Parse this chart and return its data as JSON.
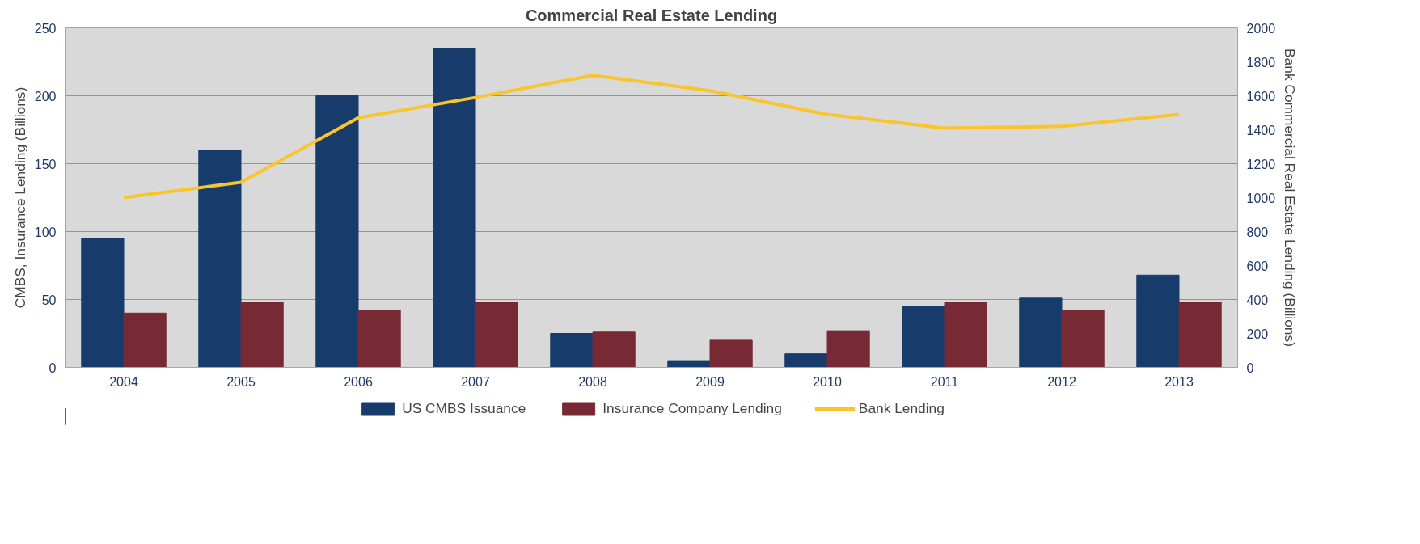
{
  "chart_data": {
    "type": "bar",
    "title": "Commercial Real Estate Lending",
    "ylabel": "CMBS, Insurance Lending (Billions)",
    "y2label": "Bank Commercial Real Estate Lending (Billions)",
    "categories": [
      "2004",
      "2005",
      "2006",
      "2007",
      "2008",
      "2009",
      "2010",
      "2011",
      "2012",
      "2013"
    ],
    "series": [
      {
        "name": "US CMBS Issuance",
        "color": "#173c6c",
        "values": [
          95,
          160,
          200,
          235,
          25,
          5,
          10,
          45,
          51,
          68
        ]
      },
      {
        "name": "Insurance Company Lending",
        "color": "#772a33",
        "values": [
          40,
          48,
          42,
          48,
          26,
          20,
          27,
          48,
          42,
          48
        ]
      },
      {
        "name": "Bank Lending",
        "color": "#f9c52a",
        "type": "line",
        "axis": "y2",
        "values": [
          1000,
          1090,
          1470,
          1590,
          1720,
          1630,
          1490,
          1410,
          1420,
          1490
        ]
      }
    ],
    "ylim": [
      0,
      250
    ],
    "yticks": [
      0,
      50,
      100,
      150,
      200,
      250
    ],
    "y2lim": [
      0,
      2000
    ],
    "y2ticks": [
      0,
      200,
      400,
      600,
      800,
      1000,
      1200,
      1400,
      1600,
      1800,
      2000
    ],
    "grid": "y",
    "legend": "bottom"
  }
}
